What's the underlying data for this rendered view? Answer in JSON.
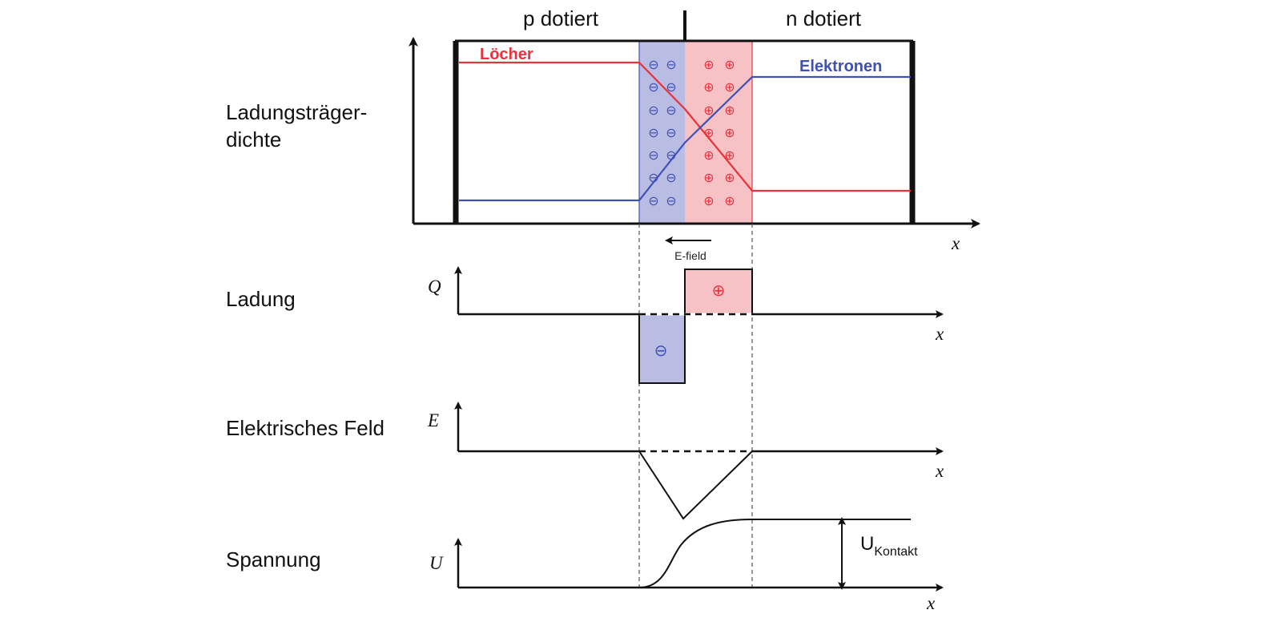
{
  "header": {
    "p_label": "p dotiert",
    "n_label": "n dotiert"
  },
  "panels": {
    "density": {
      "label_line1": "Ladungsträger-",
      "label_line2": "dichte",
      "holes_label": "Löcher",
      "electrons_label": "Elektronen",
      "x_label": "x"
    },
    "efield_arrow_label": "E-field",
    "charge": {
      "label": "Ladung",
      "y_label": "Q",
      "x_label": "x"
    },
    "field": {
      "label": "Elektrisches Feld",
      "y_label": "E",
      "x_label": "x"
    },
    "voltage": {
      "label": "Spannung",
      "y_label": "U",
      "x_label": "x",
      "contact_main": "U",
      "contact_sub": "Kontakt"
    }
  },
  "symbols": {
    "negative": "⊖",
    "positive": "⊕"
  },
  "colors": {
    "holes": "#e8323c",
    "electrons": "#3f51b5",
    "neg_region": "#b9bce3",
    "pos_region": "#f7c2c5",
    "axis": "#111111"
  }
}
